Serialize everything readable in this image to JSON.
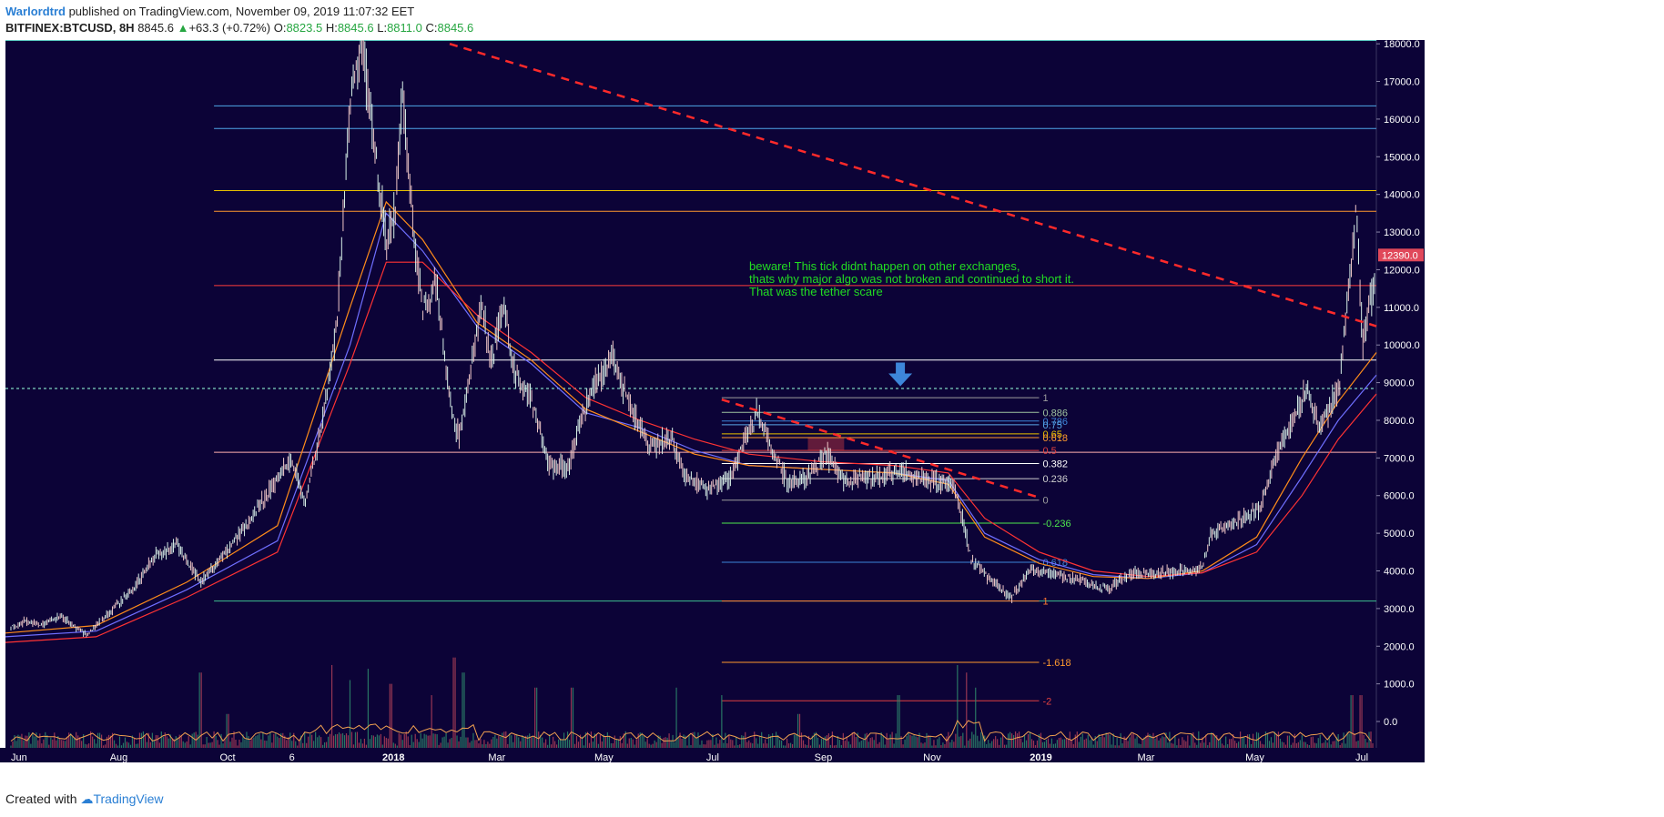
{
  "header": {
    "author": "Warlordtrd",
    "published_text": " published on TradingView.com, November 09, 2019 11:07:32 EET",
    "symbol": "BITFINEX:BTCUSD, 8H",
    "last": "8845.6",
    "change": "+63.3 (+0.72%)",
    "o_label": "O:",
    "o_value": "8823.5",
    "h_label": "H:",
    "h_value": "8845.6",
    "l_label": "L:",
    "l_value": "8811.0",
    "c_label": "C:",
    "c_value": "8845.6"
  },
  "footer": {
    "created_with": "Created with",
    "brand": "TradingView"
  },
  "colors": {
    "background": "#0c0337",
    "up": "#26a641",
    "down": "#e05a5a",
    "trend": "#ff2a2a",
    "annotation": "#22dd22"
  },
  "chart_data": {
    "type": "line",
    "title": "",
    "x_ticks": [
      "Jun",
      "Aug",
      "Oct",
      "6",
      "2018",
      "Mar",
      "May",
      "Jul",
      "Sep",
      "Nov",
      "2019",
      "Mar",
      "May",
      "Jul"
    ],
    "y_ticks": [
      "18000.0",
      "17000.0",
      "16000.0",
      "15000.0",
      "14000.0",
      "13000.0",
      "12000.0",
      "11000.0",
      "10000.0",
      "9000.0",
      "8000.0",
      "7000.0",
      "6000.0",
      "5000.0",
      "4000.0",
      "3000.0",
      "2000.0",
      "1000.0",
      "0.0"
    ],
    "ylim": [
      -700,
      18100
    ],
    "price_badge": "12390.0",
    "series": [
      {
        "kind": "price",
        "points": [
          [
            0,
            2450
          ],
          [
            20,
            2650
          ],
          [
            40,
            2550
          ],
          [
            60,
            2800
          ],
          [
            90,
            2300
          ],
          [
            110,
            2800
          ],
          [
            140,
            3500
          ],
          [
            165,
            4400
          ],
          [
            190,
            4700
          ],
          [
            215,
            3700
          ],
          [
            240,
            4400
          ],
          [
            265,
            5200
          ],
          [
            290,
            6100
          ],
          [
            315,
            7000
          ],
          [
            330,
            5800
          ],
          [
            350,
            8000
          ],
          [
            365,
            10500
          ],
          [
            380,
            16500
          ],
          [
            395,
            17900
          ],
          [
            405,
            15500
          ],
          [
            420,
            12800
          ],
          [
            430,
            13500
          ],
          [
            438,
            16800
          ],
          [
            450,
            13000
          ],
          [
            460,
            11000
          ],
          [
            475,
            11600
          ],
          [
            490,
            8500
          ],
          [
            500,
            7500
          ],
          [
            510,
            8800
          ],
          [
            525,
            11200
          ],
          [
            535,
            9500
          ],
          [
            550,
            11100
          ],
          [
            560,
            9300
          ],
          [
            580,
            8500
          ],
          [
            600,
            6800
          ],
          [
            620,
            6700
          ],
          [
            635,
            8000
          ],
          [
            650,
            9000
          ],
          [
            670,
            9700
          ],
          [
            690,
            8300
          ],
          [
            710,
            7300
          ],
          [
            735,
            7500
          ],
          [
            750,
            6500
          ],
          [
            775,
            6200
          ],
          [
            800,
            6500
          ],
          [
            815,
            7500
          ],
          [
            830,
            8200
          ],
          [
            845,
            7200
          ],
          [
            865,
            6300
          ],
          [
            885,
            6500
          ],
          [
            905,
            7100
          ],
          [
            925,
            6400
          ],
          [
            960,
            6500
          ],
          [
            990,
            6600
          ],
          [
            1020,
            6400
          ],
          [
            1045,
            6300
          ],
          [
            1055,
            5500
          ],
          [
            1065,
            4300
          ],
          [
            1085,
            3800
          ],
          [
            1110,
            3300
          ],
          [
            1130,
            4000
          ],
          [
            1160,
            3900
          ],
          [
            1190,
            3700
          ],
          [
            1215,
            3500
          ],
          [
            1240,
            3900
          ],
          [
            1270,
            3950
          ],
          [
            1300,
            4000
          ],
          [
            1320,
            4100
          ],
          [
            1330,
            5000
          ],
          [
            1360,
            5300
          ],
          [
            1385,
            5700
          ],
          [
            1400,
            7000
          ],
          [
            1420,
            8000
          ],
          [
            1435,
            8800
          ],
          [
            1450,
            7800
          ],
          [
            1470,
            8800
          ],
          [
            1480,
            11000
          ],
          [
            1490,
            13700
          ],
          [
            1497,
            10000
          ],
          [
            1505,
            11200
          ],
          [
            1512,
            11800
          ]
        ]
      },
      {
        "kind": "ma",
        "name": "",
        "color": "#6f6fff",
        "points": [
          [
            0,
            2250
          ],
          [
            100,
            2400
          ],
          [
            200,
            3500
          ],
          [
            300,
            4800
          ],
          [
            380,
            10000
          ],
          [
            420,
            13500
          ],
          [
            460,
            12500
          ],
          [
            520,
            10500
          ],
          [
            580,
            9500
          ],
          [
            640,
            8200
          ],
          [
            700,
            7800
          ],
          [
            760,
            7200
          ],
          [
            820,
            6800
          ],
          [
            900,
            6700
          ],
          [
            980,
            6600
          ],
          [
            1040,
            6400
          ],
          [
            1080,
            5000
          ],
          [
            1140,
            4300
          ],
          [
            1200,
            3900
          ],
          [
            1260,
            3800
          ],
          [
            1320,
            3950
          ],
          [
            1380,
            4700
          ],
          [
            1430,
            6500
          ],
          [
            1470,
            8000
          ],
          [
            1512,
            9200
          ]
        ]
      },
      {
        "kind": "ma",
        "name": "",
        "color": "#ff8c1a",
        "points": [
          [
            0,
            2350
          ],
          [
            100,
            2550
          ],
          [
            200,
            3700
          ],
          [
            300,
            5200
          ],
          [
            380,
            11000
          ],
          [
            420,
            13800
          ],
          [
            460,
            12800
          ],
          [
            520,
            10600
          ],
          [
            580,
            9600
          ],
          [
            640,
            8300
          ],
          [
            700,
            7700
          ],
          [
            760,
            7100
          ],
          [
            820,
            6800
          ],
          [
            900,
            6700
          ],
          [
            980,
            6600
          ],
          [
            1040,
            6300
          ],
          [
            1080,
            4900
          ],
          [
            1140,
            4200
          ],
          [
            1200,
            3850
          ],
          [
            1260,
            3800
          ],
          [
            1320,
            4000
          ],
          [
            1380,
            4900
          ],
          [
            1430,
            7000
          ],
          [
            1470,
            8500
          ],
          [
            1512,
            9800
          ]
        ]
      },
      {
        "kind": "ma",
        "name": "",
        "color": "#ff3333",
        "points": [
          [
            0,
            2100
          ],
          [
            100,
            2250
          ],
          [
            200,
            3300
          ],
          [
            300,
            4500
          ],
          [
            380,
            9500
          ],
          [
            420,
            12200
          ],
          [
            460,
            12200
          ],
          [
            520,
            10800
          ],
          [
            580,
            9800
          ],
          [
            640,
            8600
          ],
          [
            700,
            8000
          ],
          [
            760,
            7500
          ],
          [
            820,
            7100
          ],
          [
            900,
            6900
          ],
          [
            980,
            6800
          ],
          [
            1040,
            6600
          ],
          [
            1080,
            5400
          ],
          [
            1140,
            4500
          ],
          [
            1200,
            4000
          ],
          [
            1260,
            3850
          ],
          [
            1320,
            3950
          ],
          [
            1380,
            4500
          ],
          [
            1430,
            6000
          ],
          [
            1470,
            7500
          ],
          [
            1512,
            8700
          ]
        ]
      }
    ],
    "horizontal_levels": [
      {
        "y": 16350,
        "color": "#4fa8e8"
      },
      {
        "y": 15750,
        "color": "#4fa8e8"
      },
      {
        "y": 14100,
        "color": "#e8c200"
      },
      {
        "y": 13550,
        "color": "#ff9a2e"
      },
      {
        "y": 11580,
        "color": "#ff3b3b"
      },
      {
        "y": 9600,
        "color": "#ffffff"
      },
      {
        "y": 7150,
        "color": "#ffb0b0"
      },
      {
        "y": 3200,
        "color": "#3fbf8f"
      }
    ],
    "dotted_level": {
      "y": 8845.6,
      "color": "#7fd6c0"
    },
    "trend_lines": [
      {
        "from": [
          490,
          18000
        ],
        "to": [
          1512,
          10500
        ],
        "color": "#ff2a2a"
      },
      {
        "from": [
          790,
          8550
        ],
        "to": [
          1140,
          5950
        ],
        "color": "#ff2a2a"
      }
    ],
    "fib": {
      "x_start": 790,
      "x_end": 1140,
      "levels": [
        {
          "label": "1",
          "y": 8600,
          "color": "#9e9e9e"
        },
        {
          "label": "0.886",
          "y": 8210,
          "color": "#9fc4a0"
        },
        {
          "label": "0.786",
          "y": 7980,
          "color": "#3d86d9"
        },
        {
          "label": "0.75",
          "y": 7880,
          "color": "#5aa8e8"
        },
        {
          "label": "0.65",
          "y": 7640,
          "color": "#e8c200"
        },
        {
          "label": "0.618",
          "y": 7540,
          "color": "#ff9a2e"
        },
        {
          "label": "0.5",
          "y": 7200,
          "color": "#e04040"
        },
        {
          "label": "0.382",
          "y": 6850,
          "color": "#ffffff"
        },
        {
          "label": "0.236",
          "y": 6450,
          "color": "#cfcfcf"
        },
        {
          "label": "0",
          "y": 5880,
          "color": "#9e9e9e"
        },
        {
          "label": "-0.236",
          "y": 5270,
          "color": "#4ee84e"
        },
        {
          "label": "0.618",
          "y": 4230,
          "color": "#3d86d9"
        },
        {
          "label": "1",
          "y": 3200,
          "color": "#ff7a30"
        },
        {
          "label": "-1.618",
          "y": 1570,
          "color": "#ff9a2e"
        },
        {
          "label": "-2",
          "y": 550,
          "color": "#e04040"
        }
      ]
    },
    "annotation": {
      "lines": [
        "beware! This tick didnt happen on other exchanges,",
        "thats why major algo was not broken and continued to short it.",
        "That was the tether scare"
      ]
    },
    "arrow_marker": {
      "x": 987,
      "y": 9100,
      "color": "#3d86d9"
    },
    "volume_baseline": -700
  }
}
